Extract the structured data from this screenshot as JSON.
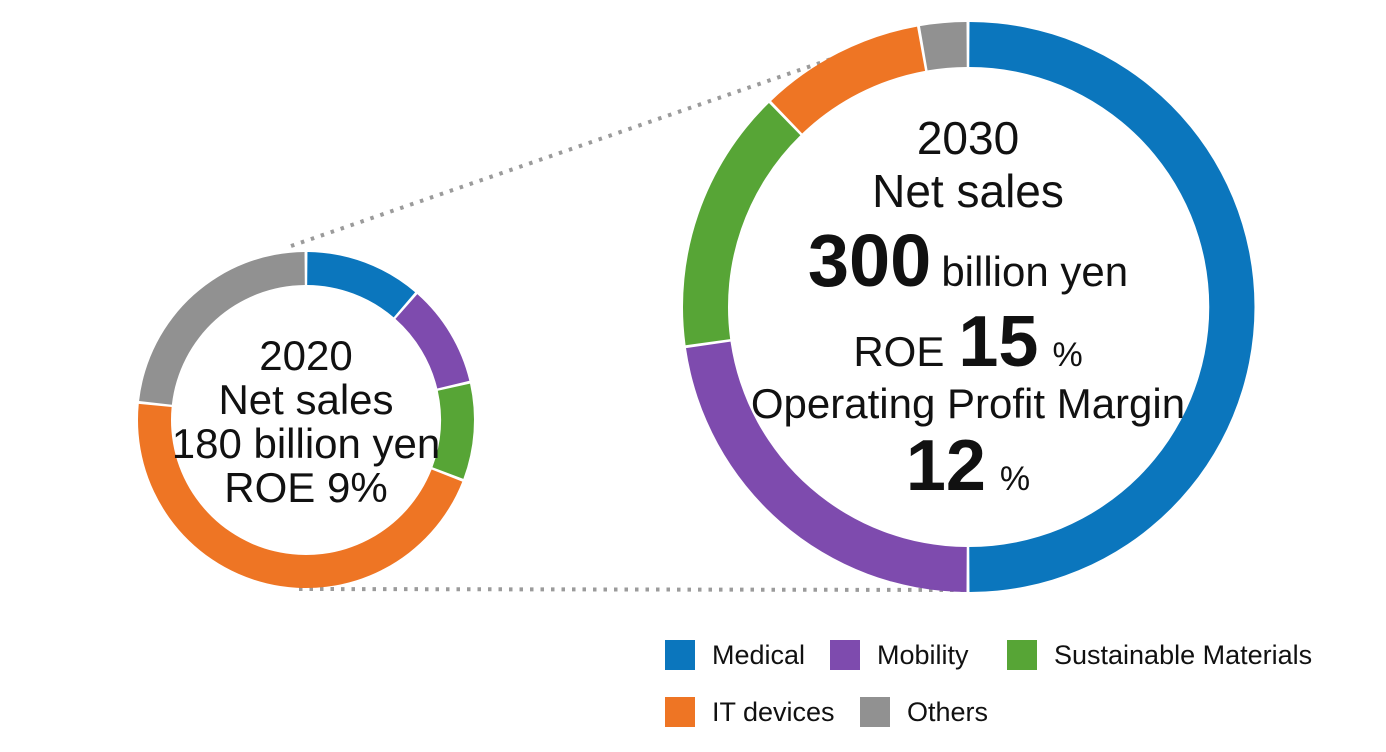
{
  "colors": {
    "background": "#ffffff",
    "text": "#111111",
    "connector": "#9b9b9b",
    "segments": {
      "Medical": "#0b76bd",
      "Mobility": "#7e4bae",
      "Sustainable Materials": "#57a536",
      "IT devices": "#ee7524",
      "Others": "#919191"
    }
  },
  "chart_data": [
    {
      "type": "pie",
      "subtype": "donut",
      "id": "donut_2020",
      "title": "2020",
      "center_text": [
        "2020",
        "Net sales",
        "180 billion yen",
        "ROE 9%"
      ],
      "categories": [
        "Medical",
        "Mobility",
        "Sustainable Materials",
        "IT devices",
        "Others"
      ],
      "values_deg": [
        41,
        36,
        34,
        165,
        84
      ],
      "values_percent_est": [
        11.4,
        10.0,
        9.4,
        45.8,
        23.3
      ],
      "start_angle": "12 o'clock, clockwise",
      "net_sales_billion_yen": 180,
      "roe_percent": 9
    },
    {
      "type": "pie",
      "subtype": "donut",
      "id": "donut_2030",
      "title": "2030",
      "center_text": [
        "2030",
        "Net sales",
        "300 billion yen",
        "ROE 15 %",
        "Operating Profit Margin",
        "12 %"
      ],
      "categories": [
        "Medical",
        "Mobility",
        "Sustainable Materials",
        "IT devices",
        "Others"
      ],
      "values_deg": [
        180,
        82,
        54,
        34,
        10
      ],
      "values_percent_est": [
        50.0,
        22.8,
        15.0,
        9.4,
        2.8
      ],
      "start_angle": "12 o'clock, clockwise",
      "net_sales_billion_yen": 300,
      "roe_percent": 15,
      "operating_profit_margin_percent": 12
    }
  ],
  "donut_2020_center": {
    "year": "2020",
    "net_sales_label": "Net sales",
    "net_sales_value": "180 billion yen",
    "roe": "ROE 9%"
  },
  "donut_2030_center": {
    "year": "2030",
    "net_sales_label": "Net sales",
    "net_sales_value": "300",
    "net_sales_unit": "billion yen",
    "roe_label": "ROE",
    "roe_value": "15",
    "roe_unit": "%",
    "opm_label": "Operating Profit Margin",
    "opm_value": "12",
    "opm_unit": "%"
  },
  "legend": {
    "items": [
      {
        "label": "Medical",
        "color_key": "Medical"
      },
      {
        "label": "Mobility",
        "color_key": "Mobility"
      },
      {
        "label": "Sustainable Materials",
        "color_key": "Sustainable Materials"
      },
      {
        "label": "IT devices",
        "color_key": "IT devices"
      },
      {
        "label": "Others",
        "color_key": "Others"
      }
    ]
  }
}
